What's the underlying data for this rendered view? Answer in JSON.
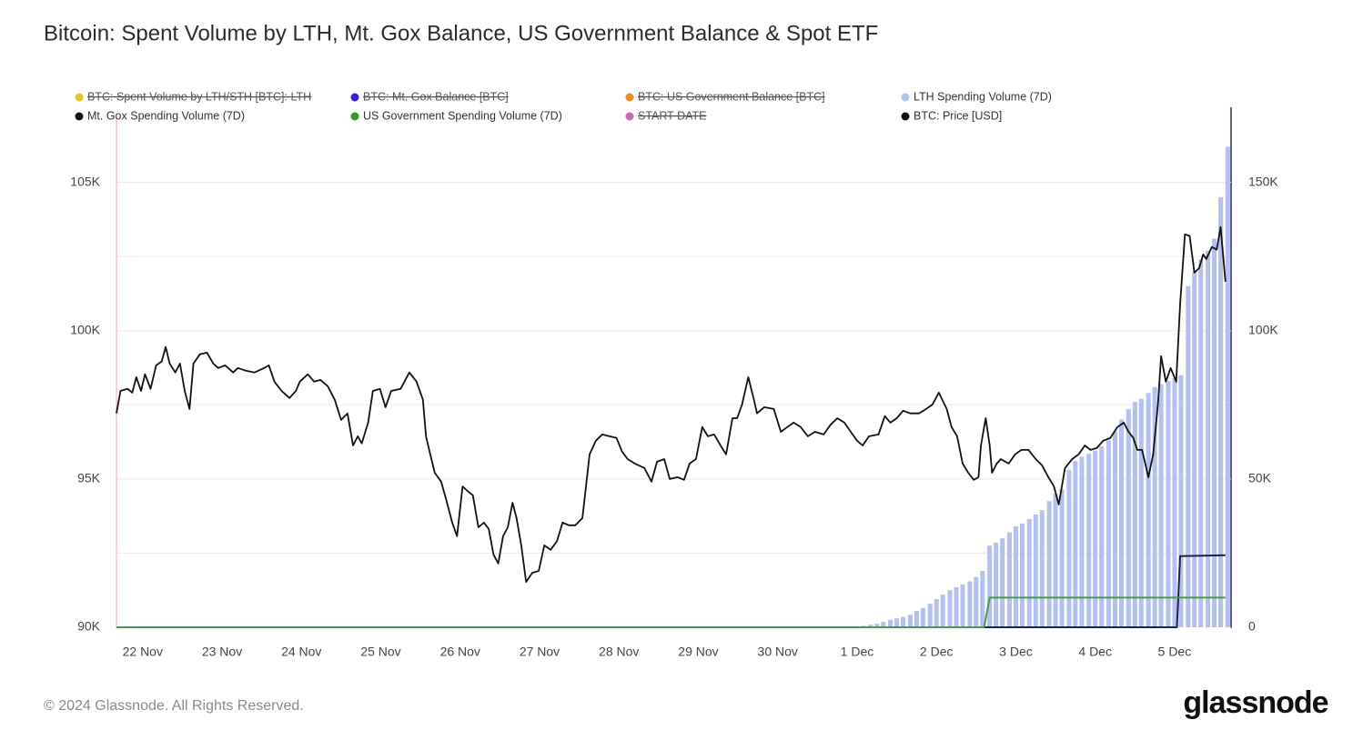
{
  "chart_data": {
    "type": "combo",
    "title": "Bitcoin: Spent Volume by LTH, Mt. Gox Balance, US Government Balance & Spot ETF",
    "xlim": [
      -0.33,
      13.7
    ],
    "xticks": [
      {
        "value": 0,
        "label": "22 Nov"
      },
      {
        "value": 1,
        "label": "23 Nov"
      },
      {
        "value": 2,
        "label": "24 Nov"
      },
      {
        "value": 3,
        "label": "25 Nov"
      },
      {
        "value": 4,
        "label": "26 Nov"
      },
      {
        "value": 5,
        "label": "27 Nov"
      },
      {
        "value": 6,
        "label": "28 Nov"
      },
      {
        "value": 7,
        "label": "29 Nov"
      },
      {
        "value": 8,
        "label": "30 Nov"
      },
      {
        "value": 9,
        "label": "1 Dec"
      },
      {
        "value": 10,
        "label": "2 Dec"
      },
      {
        "value": 11,
        "label": "3 Dec"
      },
      {
        "value": 12,
        "label": "4 Dec"
      },
      {
        "value": 13,
        "label": "5 Dec"
      }
    ],
    "ylim": [
      90000,
      107500
    ],
    "yticks": [
      {
        "value": 90000,
        "label": "90K"
      },
      {
        "value": 95000,
        "label": "95K"
      },
      {
        "value": 100000,
        "label": "100K"
      },
      {
        "value": 105000,
        "label": "105K"
      }
    ],
    "y_minor_grid": [
      92500,
      97500,
      102500
    ],
    "y2lim": [
      0,
      175000
    ],
    "y2ticks": [
      0,
      {
        "value": 50000,
        "label": "50K"
      },
      {
        "value": 100000,
        "label": "100K"
      },
      {
        "value": 150000,
        "label": "150K"
      }
    ],
    "grid": true,
    "legend": "top",
    "series": [
      {
        "name": "BTC: Spent Volume by LTH/STH [BTC]: LTH",
        "color": "#e6c619",
        "visible": false
      },
      {
        "name": "BTC: Mt. Gox Balance [BTC]",
        "color": "#3a1fd0",
        "visible": false
      },
      {
        "name": "BTC: US Government Balance [BTC]",
        "color": "#e8902c",
        "visible": false
      },
      {
        "name": "LTH Spending Volume (7D)",
        "color": "#b4c0f0",
        "visible": true,
        "type": "bar",
        "axis": "y2",
        "x": [
          9.0,
          9.08,
          9.17,
          9.25,
          9.33,
          9.42,
          9.5,
          9.58,
          9.67,
          9.75,
          9.83,
          9.92,
          10.0,
          10.08,
          10.17,
          10.25,
          10.33,
          10.42,
          10.5,
          10.58,
          10.67,
          10.75,
          10.83,
          10.92,
          11.0,
          11.08,
          11.17,
          11.25,
          11.33,
          11.42,
          11.5,
          11.58,
          11.67,
          11.75,
          11.83,
          11.92,
          12.0,
          12.08,
          12.17,
          12.25,
          12.33,
          12.42,
          12.5,
          12.58,
          12.67,
          12.75,
          12.83,
          12.92,
          13.0,
          13.08,
          13.17,
          13.25,
          13.33,
          13.42,
          13.5,
          13.58,
          13.67
        ],
        "values": [
          300,
          500,
          900,
          1200,
          1800,
          2500,
          3000,
          3500,
          4200,
          5500,
          6500,
          8000,
          9500,
          11000,
          12500,
          13500,
          14500,
          15500,
          17000,
          19000,
          27500,
          28500,
          30000,
          32000,
          34000,
          35000,
          36500,
          38000,
          39500,
          42500,
          45000,
          46500,
          53000,
          56000,
          57500,
          58500,
          59500,
          61000,
          63000,
          66000,
          70000,
          73500,
          76000,
          77000,
          79000,
          81000,
          82000,
          83000,
          84000,
          85000,
          115000,
          120000,
          124000,
          127000,
          131000,
          145000,
          162000
        ]
      },
      {
        "name": "Mt. Gox Spending Volume (7D)",
        "color": "#1c1f4a",
        "legend_color": "#111111",
        "visible": true,
        "type": "line",
        "axis": "y2",
        "x": [
          -0.33,
          13.03,
          13.07,
          13.64
        ],
        "values": [
          0,
          0,
          24000,
          24300
        ]
      },
      {
        "name": "US Government Spending Volume (7D)",
        "color": "#4a9a4a",
        "legend_color": "#2e9e1f",
        "visible": true,
        "type": "line",
        "axis": "y2",
        "x": [
          -0.33,
          10.6,
          10.67,
          13.64
        ],
        "values": [
          0,
          0,
          10000,
          10000
        ]
      },
      {
        "name": "START DATE",
        "color": "#c86aa8",
        "visible": false
      },
      {
        "name": "BTC: Price [USD]",
        "color": "#111111",
        "visible": true,
        "type": "line",
        "axis": "y",
        "x": [
          -0.33,
          -0.28,
          -0.19,
          -0.13,
          -0.08,
          -0.02,
          0.03,
          0.1,
          0.17,
          0.24,
          0.29,
          0.34,
          0.41,
          0.47,
          0.53,
          0.59,
          0.64,
          0.72,
          0.81,
          0.89,
          0.95,
          1.04,
          1.14,
          1.2,
          1.3,
          1.41,
          1.53,
          1.59,
          1.66,
          1.75,
          1.85,
          1.93,
          1.98,
          2.08,
          2.16,
          2.24,
          2.33,
          2.42,
          2.5,
          2.58,
          2.65,
          2.71,
          2.76,
          2.84,
          2.9,
          2.99,
          3.06,
          3.13,
          3.25,
          3.36,
          3.45,
          3.53,
          3.57,
          3.61,
          3.68,
          3.76,
          3.84,
          3.9,
          3.96,
          4.03,
          4.09,
          4.16,
          4.23,
          4.3,
          4.36,
          4.42,
          4.48,
          4.54,
          4.6,
          4.66,
          4.71,
          4.77,
          4.83,
          4.91,
          4.99,
          5.06,
          5.14,
          5.22,
          5.29,
          5.37,
          5.45,
          5.54,
          5.63,
          5.71,
          5.79,
          5.88,
          5.97,
          6.04,
          6.11,
          6.2,
          6.32,
          6.41,
          6.48,
          6.57,
          6.64,
          6.74,
          6.82,
          6.89,
          6.97,
          7.05,
          7.12,
          7.2,
          7.28,
          7.35,
          7.43,
          7.49,
          7.55,
          7.63,
          7.7,
          7.74,
          7.83,
          7.95,
          8.04,
          8.12,
          8.2,
          8.29,
          8.38,
          8.47,
          8.58,
          8.66,
          8.75,
          8.84,
          8.92,
          9.0,
          9.07,
          9.15,
          9.27,
          9.35,
          9.42,
          9.5,
          9.58,
          9.67,
          9.78,
          9.87,
          9.95,
          10.03,
          10.13,
          10.19,
          10.26,
          10.33,
          10.4,
          10.47,
          10.53,
          10.56,
          10.62,
          10.67,
          10.7,
          10.76,
          10.81,
          10.91,
          10.99,
          11.07,
          11.16,
          11.25,
          11.33,
          11.41,
          11.48,
          11.54,
          11.57,
          11.62,
          11.71,
          11.79,
          11.87,
          11.94,
          12.02,
          12.1,
          12.19,
          12.28,
          12.36,
          12.42,
          12.48,
          12.53,
          12.59,
          12.67,
          12.73,
          12.79,
          12.83,
          12.89,
          12.95,
          13.02,
          13.07,
          13.13,
          13.19,
          13.25,
          13.31,
          13.36,
          13.4,
          13.47,
          13.53,
          13.58,
          13.64
        ],
        "values": [
          97210,
          97970,
          98040,
          97910,
          98430,
          97970,
          98530,
          98040,
          98830,
          98960,
          99450,
          98890,
          98590,
          98890,
          97970,
          97360,
          98890,
          99200,
          99260,
          98890,
          98740,
          98830,
          98590,
          98740,
          98650,
          98590,
          98740,
          98830,
          98280,
          97970,
          97730,
          97970,
          98280,
          98530,
          98280,
          98340,
          98130,
          97670,
          96990,
          97210,
          96130,
          96440,
          96200,
          96900,
          97970,
          98040,
          97420,
          97970,
          98040,
          98590,
          98280,
          97670,
          96440,
          95980,
          95210,
          94910,
          94140,
          93530,
          93070,
          94750,
          94600,
          94450,
          93370,
          93530,
          93310,
          92450,
          92150,
          93070,
          93370,
          94200,
          93680,
          92760,
          91530,
          91840,
          91900,
          92760,
          92610,
          92910,
          93530,
          93440,
          93440,
          93680,
          95830,
          96290,
          96500,
          96440,
          96380,
          95920,
          95670,
          95520,
          95370,
          94910,
          95580,
          95670,
          95000,
          95060,
          94970,
          95520,
          95670,
          96750,
          96440,
          96500,
          96130,
          95830,
          97050,
          97050,
          97510,
          98430,
          97670,
          97210,
          97420,
          97360,
          96590,
          96750,
          96900,
          96750,
          96440,
          96590,
          96500,
          96810,
          97050,
          96900,
          96590,
          96290,
          96130,
          96440,
          96500,
          97120,
          96900,
          97050,
          97300,
          97210,
          97210,
          97360,
          97510,
          97910,
          97360,
          96750,
          96440,
          95520,
          95210,
          94970,
          95060,
          96130,
          97050,
          96130,
          95210,
          95520,
          95670,
          95520,
          95830,
          95980,
          95980,
          95670,
          95460,
          95060,
          94750,
          94140,
          94600,
          95370,
          95670,
          95830,
          96130,
          95980,
          96040,
          96290,
          96380,
          96750,
          96900,
          96590,
          96380,
          95980,
          95980,
          95060,
          95830,
          97510,
          99140,
          98280,
          98740,
          98280,
          100890,
          103250,
          103190,
          101960,
          102110,
          102570,
          102420,
          102820,
          102730,
          103490,
          101650
        ]
      }
    ]
  },
  "footer": "© 2024 Glassnode. All Rights Reserved.",
  "brand": "glassnode"
}
